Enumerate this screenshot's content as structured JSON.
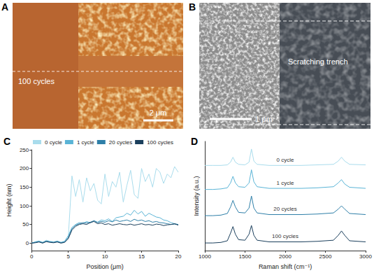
{
  "image_panels": [
    {
      "letter": "A",
      "label": "100 cycles",
      "scale_bar": "2 μm"
    },
    {
      "letter": "B",
      "label": "Scratching trench",
      "scale_bar": "1 μm"
    }
  ],
  "chart_data": [
    {
      "type": "line",
      "title": "C",
      "x_label": "Position (μm)",
      "y_label": "Height (nm)",
      "x": [
        0,
        0.5,
        1,
        1.5,
        2,
        2.5,
        3,
        3.5,
        4,
        4.5,
        5,
        5.5,
        6,
        6.5,
        7,
        7.5,
        8,
        8.5,
        9,
        9.5,
        10,
        10.5,
        11,
        11.5,
        12,
        12.5,
        13,
        13.5,
        14,
        14.5,
        15,
        15.5,
        16,
        16.5,
        17,
        17.5,
        18,
        18.5,
        19,
        19.5,
        20
      ],
      "xlim": [
        0,
        20
      ],
      "xticks": [
        0,
        5,
        10,
        15,
        20
      ],
      "ylim": [
        -20,
        250
      ],
      "yticks": [
        0,
        50,
        100,
        150,
        200,
        250
      ],
      "grid": false,
      "legend": "top-left",
      "series": [
        {
          "name": "0 cycle",
          "color": "#a9dcec",
          "values": [
            0,
            4,
            6,
            2,
            8,
            5,
            3,
            6,
            2,
            4,
            15,
            180,
            125,
            170,
            110,
            175,
            140,
            160,
            115,
            105,
            185,
            125,
            165,
            150,
            190,
            110,
            155,
            195,
            130,
            120,
            200,
            165,
            185,
            150,
            200,
            190,
            160,
            185,
            175,
            205,
            190
          ]
        },
        {
          "name": "1 cycle",
          "color": "#5ab4d6",
          "values": [
            0,
            3,
            5,
            2,
            6,
            4,
            3,
            5,
            2,
            5,
            20,
            42,
            50,
            55,
            52,
            58,
            54,
            60,
            56,
            62,
            60,
            65,
            58,
            68,
            70,
            72,
            80,
            75,
            88,
            78,
            85,
            72,
            80,
            75,
            70,
            68,
            62,
            60,
            55,
            52,
            50
          ]
        },
        {
          "name": "20 cycles",
          "color": "#2e7fa8",
          "values": [
            0,
            2,
            4,
            1,
            5,
            3,
            2,
            4,
            1,
            3,
            15,
            38,
            48,
            52,
            55,
            54,
            56,
            60,
            55,
            58,
            56,
            60,
            57,
            62,
            58,
            60,
            62,
            58,
            64,
            60,
            62,
            58,
            60,
            56,
            58,
            55,
            54,
            52,
            50,
            51,
            50
          ]
        },
        {
          "name": "100 cycles",
          "color": "#1b3f5c",
          "values": [
            0,
            1,
            3,
            0,
            4,
            2,
            1,
            3,
            0,
            2,
            12,
            35,
            45,
            50,
            52,
            50,
            55,
            58,
            52,
            54,
            50,
            52,
            48,
            50,
            52,
            50,
            49,
            51,
            48,
            50,
            52,
            49,
            50,
            48,
            51,
            50,
            47,
            49,
            50,
            52,
            48
          ]
        }
      ]
    },
    {
      "type": "line",
      "title": "D",
      "x_label": "Raman shift (cm⁻¹)",
      "y_label": "Intensity (a.u.)",
      "x": [
        1000,
        1100,
        1200,
        1280,
        1320,
        1350,
        1380,
        1420,
        1500,
        1550,
        1580,
        1610,
        1650,
        1800,
        2000,
        2200,
        2400,
        2600,
        2660,
        2700,
        2740,
        2800,
        3000
      ],
      "xlim": [
        1000,
        3000
      ],
      "xticks": [
        1000,
        1500,
        2000,
        2500,
        3000
      ],
      "ylim": [
        0,
        10
      ],
      "tick_labels": "x",
      "grid": false,
      "series": [
        {
          "name": "0 cycle",
          "color": "#a9dcec",
          "values": [
            7.8,
            7.8,
            7.8,
            7.85,
            8.1,
            8.55,
            8.1,
            7.9,
            7.85,
            8.1,
            9.3,
            8.2,
            7.9,
            7.8,
            7.8,
            7.8,
            7.85,
            7.9,
            8.2,
            8.55,
            8.2,
            7.9,
            7.85
          ]
        },
        {
          "name": "1 cycle",
          "color": "#5ab4d6",
          "values": [
            5.6,
            5.6,
            5.65,
            5.75,
            6.2,
            6.8,
            6.2,
            5.85,
            5.8,
            6.2,
            7.4,
            6.3,
            5.85,
            5.7,
            5.7,
            5.7,
            5.75,
            5.85,
            6.2,
            6.5,
            6.1,
            5.8,
            5.7
          ]
        },
        {
          "name": "20 cycles",
          "color": "#2e7fa8",
          "values": [
            3.2,
            3.2,
            3.25,
            3.4,
            4.0,
            4.6,
            4.0,
            3.5,
            3.45,
            3.9,
            5.0,
            3.9,
            3.45,
            3.3,
            3.3,
            3.3,
            3.35,
            3.45,
            3.8,
            4.1,
            3.8,
            3.4,
            3.3
          ]
        },
        {
          "name": "100 cycles",
          "color": "#1b3f5c",
          "values": [
            0.7,
            0.7,
            0.75,
            0.9,
            1.6,
            2.2,
            1.5,
            1.0,
            0.95,
            1.5,
            2.3,
            1.4,
            0.95,
            0.8,
            0.8,
            0.8,
            0.85,
            0.95,
            1.4,
            1.8,
            1.4,
            0.9,
            0.8
          ]
        }
      ]
    }
  ]
}
